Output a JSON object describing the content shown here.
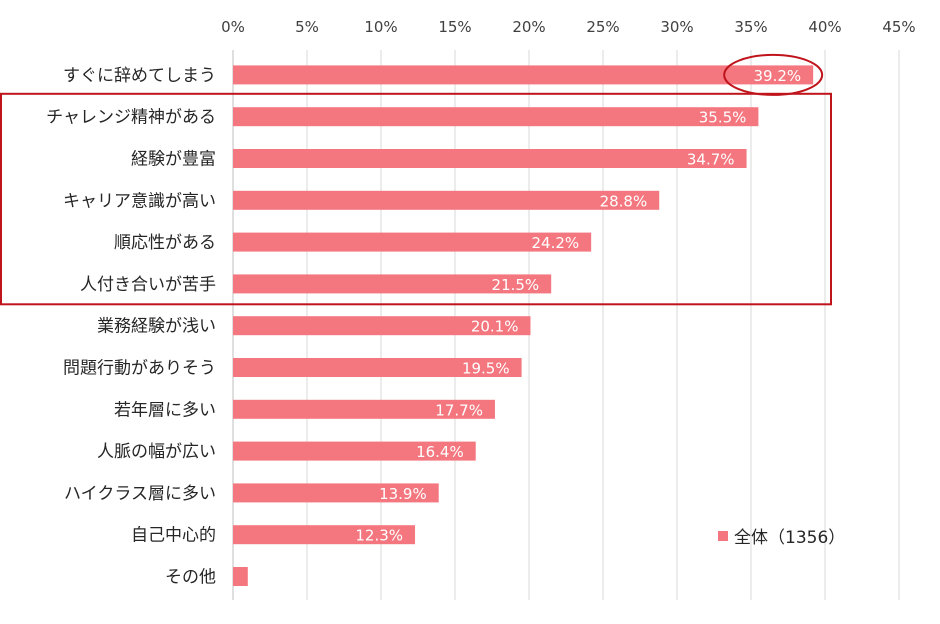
{
  "chart_data": {
    "type": "bar",
    "orientation": "horizontal",
    "title": "",
    "xlabel": "",
    "ylabel": "",
    "xlim": [
      0,
      45
    ],
    "ticks": [
      0,
      5,
      10,
      15,
      20,
      25,
      30,
      35,
      40,
      45
    ],
    "tick_labels": [
      "0%",
      "5%",
      "10%",
      "15%",
      "20%",
      "25%",
      "30%",
      "35%",
      "40%",
      "45%"
    ],
    "grid": true,
    "legend_position": "bottom-right",
    "categories": [
      "すぐに辞めてしまう",
      "チャレンジ精神がある",
      "経験が豊富",
      "キャリア意識が高い",
      "順応性がある",
      "人付き合いが苦手",
      "業務経験が浅い",
      "問題行動がありそう",
      "若年層に多い",
      "人脈の幅が広い",
      "ハイクラス層に多い",
      "自己中心的",
      "その他"
    ],
    "series": [
      {
        "name": "全体（1356）",
        "color": "#f4777f",
        "values": [
          39.2,
          35.5,
          34.7,
          28.8,
          24.2,
          21.5,
          20.1,
          19.5,
          17.7,
          16.4,
          13.9,
          12.3,
          1.0
        ],
        "labels": [
          "39.2%",
          "35.5%",
          "34.7%",
          "28.8%",
          "24.2%",
          "21.5%",
          "20.1%",
          "19.5%",
          "17.7%",
          "16.4%",
          "13.9%",
          "12.3%",
          ""
        ]
      }
    ],
    "annotations": {
      "highlight_ellipse_category_index": 0,
      "highlight_box_category_range": [
        1,
        5
      ],
      "highlight_color": "#c0141c"
    }
  }
}
